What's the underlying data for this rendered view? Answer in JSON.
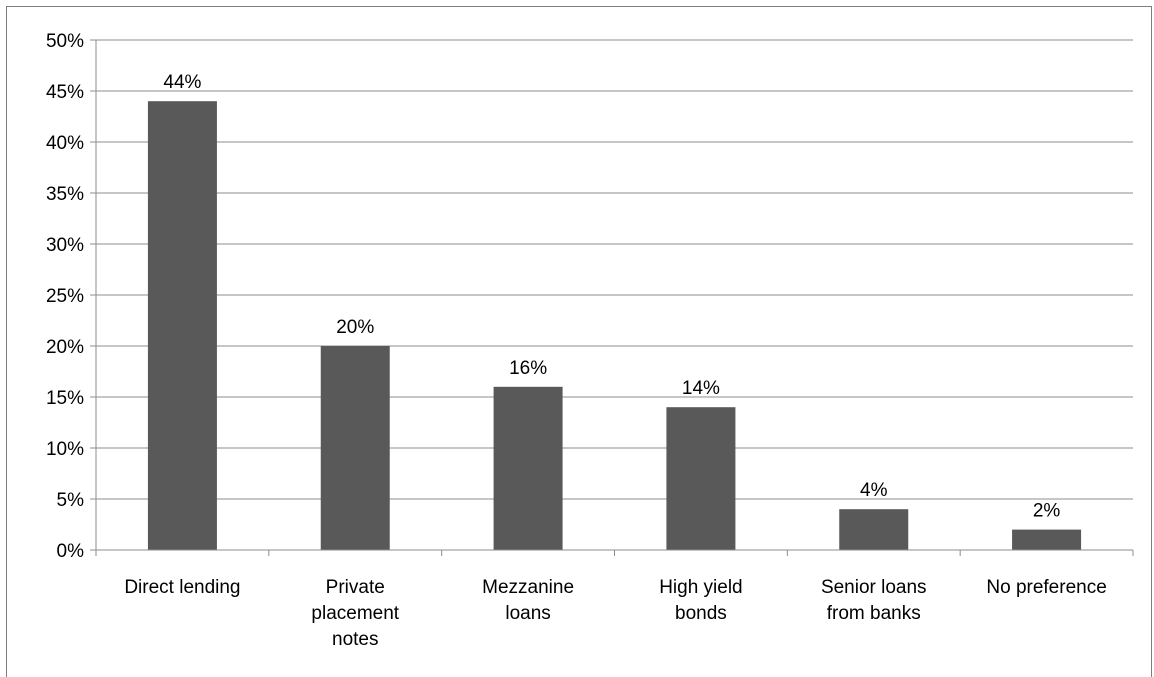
{
  "chart_data": {
    "type": "bar",
    "categories": [
      [
        "Direct lending"
      ],
      [
        "Private",
        "placement",
        "notes"
      ],
      [
        "Mezzanine",
        "loans"
      ],
      [
        "High yield",
        "bonds"
      ],
      [
        "Senior loans",
        "from banks"
      ],
      [
        "No preference"
      ]
    ],
    "values": [
      44,
      20,
      16,
      14,
      4,
      2
    ],
    "data_labels": [
      "44%",
      "20%",
      "16%",
      "14%",
      "4%",
      "2%"
    ],
    "y_ticks": [
      "0%",
      "5%",
      "10%",
      "15%",
      "20%",
      "25%",
      "30%",
      "35%",
      "40%",
      "45%",
      "50%"
    ],
    "ylim": [
      0,
      50
    ],
    "grid": true,
    "legend": "none",
    "title": "",
    "xlabel": "",
    "ylabel": "",
    "colors": {
      "bar": "#595959",
      "grid": "#8c8c8c",
      "axis": "#8c8c8c"
    }
  }
}
